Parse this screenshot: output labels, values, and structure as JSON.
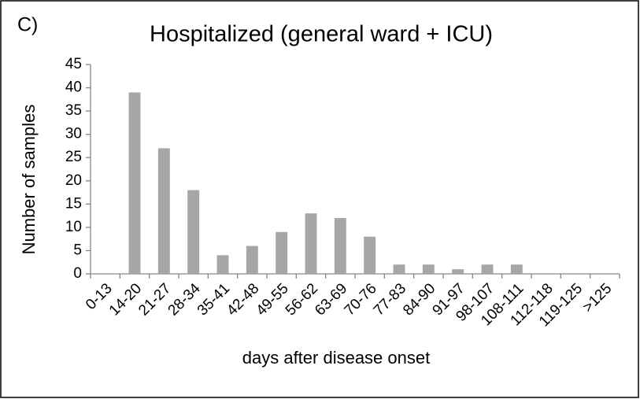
{
  "chart_data": {
    "type": "bar",
    "panel_label": "C)",
    "title": "Hospitalized (general ward + ICU)",
    "y_label": "Number of samples",
    "x_label": "days after disease onset",
    "categories": [
      "0-13",
      "14-20",
      "21-27",
      "28-34",
      "35-41",
      "42-48",
      "49-55",
      "56-62",
      "63-69",
      "70-76",
      "77-83",
      "84-90",
      "91-97",
      "98-107",
      "108-111",
      "112-118",
      "119-125",
      ">125"
    ],
    "values": [
      0,
      39,
      27,
      18,
      4,
      6,
      9,
      13,
      12,
      8,
      2,
      2,
      1,
      2,
      2,
      0,
      0,
      0
    ],
    "color": "#a6a6a6",
    "ylim": [
      0,
      45
    ],
    "yticks": [
      0,
      5,
      10,
      15,
      20,
      25,
      30,
      35,
      40,
      45
    ],
    "grid": false
  }
}
